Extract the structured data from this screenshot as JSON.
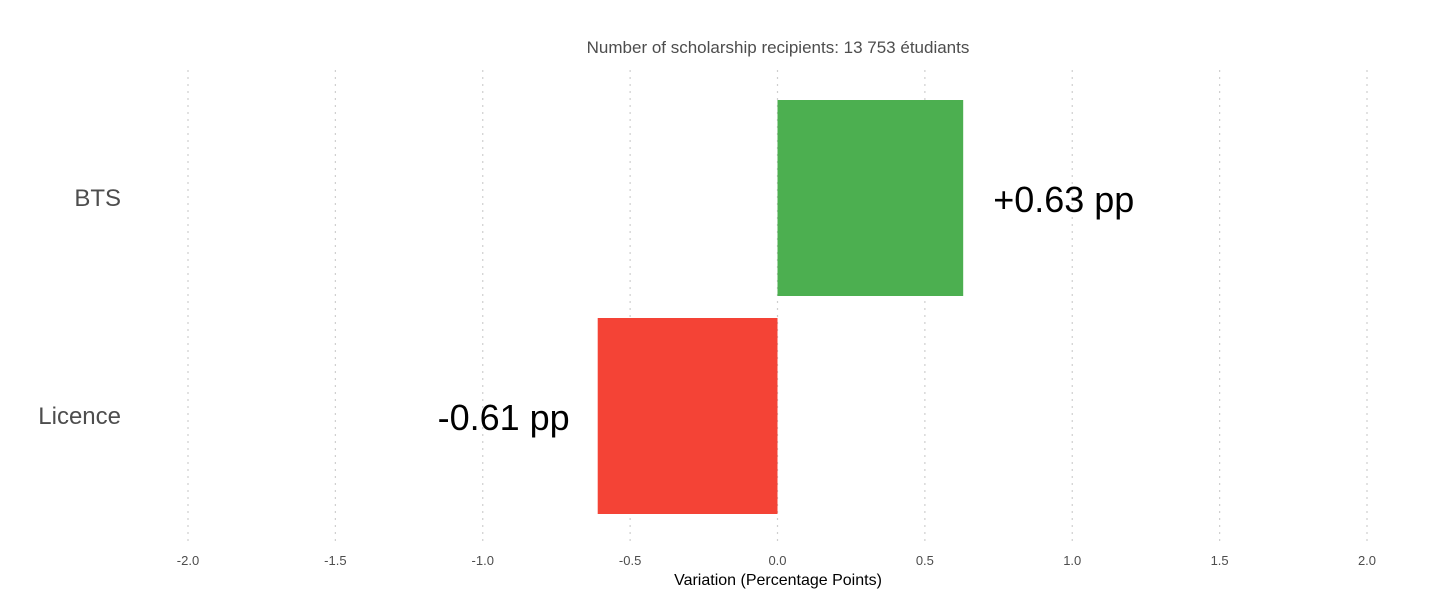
{
  "chart_data": {
    "type": "bar",
    "orientation": "horizontal",
    "subtitle": "Number of scholarship recipients: 13 753 étudiants",
    "xlabel": "Variation (Percentage Points)",
    "ylabel": "",
    "categories": [
      "BTS",
      "Licence"
    ],
    "values": [
      0.63,
      -0.61
    ],
    "value_labels": [
      "+0.63 pp",
      "-0.61 pp"
    ],
    "bar_colors": [
      "#4caf50",
      "#f44336"
    ],
    "xlim": [
      -2.0,
      2.0
    ],
    "x_ticks": [
      -2.0,
      -1.5,
      -1.0,
      -0.5,
      0.0,
      0.5,
      1.0,
      1.5,
      2.0
    ],
    "x_tick_labels": [
      "-2.0",
      "-1.5",
      "-1.0",
      "-0.5",
      "0.0",
      "0.5",
      "1.0",
      "1.5",
      "2.0"
    ],
    "grid": "vertical-dotted",
    "legend": "none"
  }
}
